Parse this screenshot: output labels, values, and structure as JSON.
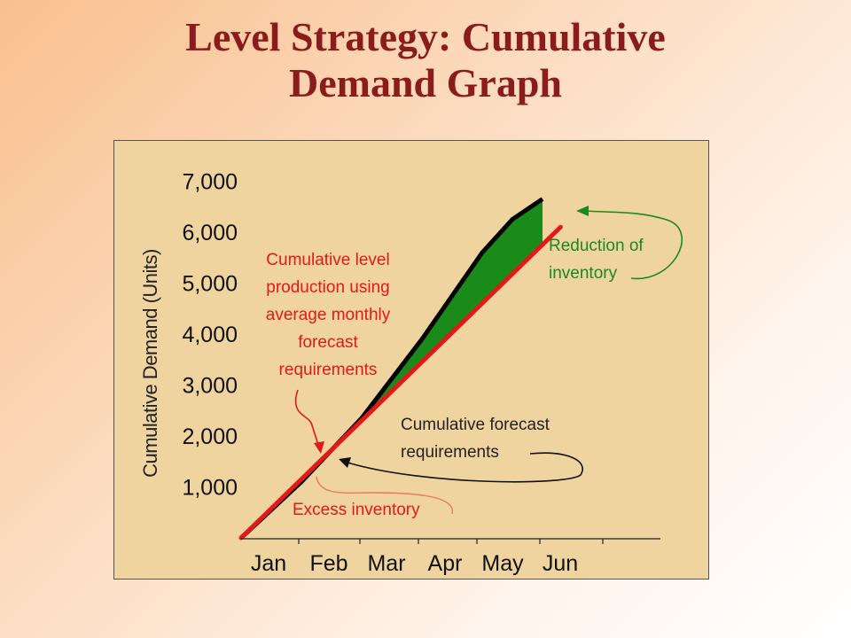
{
  "title": {
    "line1": "Level Strategy: Cumulative",
    "line2": "Demand Graph"
  },
  "colors": {
    "title": "#8b1c1c",
    "panel": "#efd4a0",
    "level_line": "#e31919",
    "forecast_line": "#000000",
    "excess_fill": "#f2c400",
    "reduction_fill": "#1a8a1a"
  },
  "annotations": {
    "level_lines": [
      "Cumulative level",
      "production using",
      "average monthly",
      "forecast",
      "requirements"
    ],
    "reduction_lines": [
      "Reduction of",
      "inventory"
    ],
    "forecast_lines": [
      "Cumulative forecast",
      "requirements"
    ],
    "excess": "Excess inventory"
  },
  "chart_data": {
    "type": "line",
    "ylabel": "Cumulative Demand (Units)",
    "xlabel": "",
    "categories": [
      "Jan",
      "Feb",
      "Mar",
      "Apr",
      "May",
      "Jun"
    ],
    "yticks": [
      "1,000",
      "2,000",
      "3,000",
      "4,000",
      "5,000",
      "6,000",
      "7,000"
    ],
    "ytick_values": [
      1000,
      2000,
      3000,
      4000,
      5000,
      6000,
      7000
    ],
    "ylim": [
      0,
      7000
    ],
    "series": [
      {
        "key": "forecast",
        "x": [
          0,
          1,
          2,
          3,
          4,
          4.5,
          5
        ],
        "values": [
          0,
          1100,
          2350,
          3900,
          5600,
          6250,
          6650
        ]
      },
      {
        "key": "level",
        "x": [
          0,
          5.3
        ],
        "values": [
          0,
          6100
        ]
      }
    ],
    "shaded_regions": [
      {
        "key": "excess",
        "label": "Excess inventory"
      },
      {
        "key": "reduction",
        "label": "Reduction of inventory"
      }
    ],
    "grid": false,
    "legend": "none"
  }
}
